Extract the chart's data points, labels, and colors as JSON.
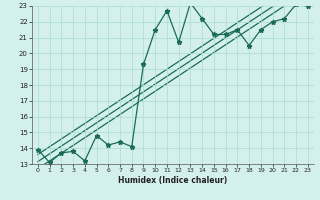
{
  "x_data": [
    0,
    1,
    2,
    3,
    4,
    5,
    6,
    7,
    8,
    9,
    10,
    11,
    12,
    13,
    14,
    15,
    16,
    17,
    18,
    19,
    20,
    21,
    22,
    23
  ],
  "y_data": [
    13.9,
    13.1,
    13.7,
    13.8,
    13.2,
    14.8,
    14.2,
    14.4,
    14.1,
    19.3,
    21.5,
    22.7,
    20.7,
    23.2,
    22.2,
    21.2,
    21.2,
    21.5,
    20.5,
    21.5,
    22.0,
    22.2,
    23.1,
    23.0
  ],
  "line_color": "#1a6b5a",
  "regression_color": "#1a6b5a",
  "bg_color": "#d4f0ec",
  "grid_color": "#aaddcc",
  "xlabel": "Humidex (Indice chaleur)",
  "xlim": [
    0,
    23
  ],
  "ylim": [
    13,
    23
  ],
  "xticks": [
    0,
    1,
    2,
    3,
    4,
    5,
    6,
    7,
    8,
    9,
    10,
    11,
    12,
    13,
    14,
    15,
    16,
    17,
    18,
    19,
    20,
    21,
    22,
    23
  ],
  "yticks": [
    13,
    14,
    15,
    16,
    17,
    18,
    19,
    20,
    21,
    22,
    23
  ],
  "regression_offsets": [
    -0.45,
    0.0,
    0.45
  ]
}
